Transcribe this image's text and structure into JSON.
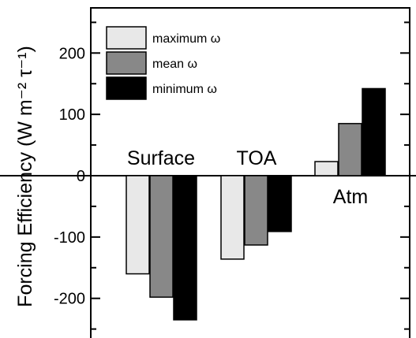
{
  "chart_data": {
    "type": "bar",
    "categories": [
      "Surface",
      "TOA",
      "Atm"
    ],
    "series": [
      {
        "name": "maximum ω",
        "color": "#e8e8e8",
        "values": [
          -160,
          -136,
          23
        ]
      },
      {
        "name": "mean ω",
        "color": "#888888",
        "values": [
          -198,
          -113,
          85
        ]
      },
      {
        "name": "minimum ω",
        "color": "#000000",
        "values": [
          -235,
          -91,
          142
        ]
      }
    ],
    "ylabel": "Forcing Efficiency (W m⁻² τ⁻¹)",
    "ylim": [
      -263,
      263
    ],
    "yticks": [
      -200,
      -100,
      0,
      100,
      200
    ],
    "ytick_labels": [
      "-200",
      "-100",
      "0",
      "100",
      "200"
    ],
    "legend_position": "top-left",
    "grid": false
  }
}
